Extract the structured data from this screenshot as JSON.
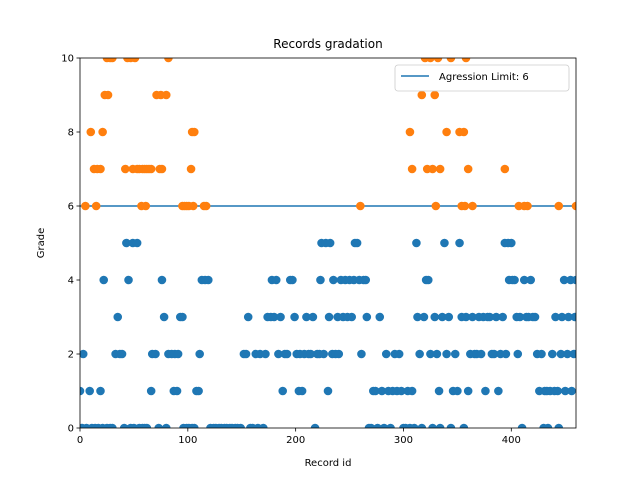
{
  "chart_data": {
    "type": "scatter",
    "title": "Records gradation",
    "xlabel": "Record id",
    "ylabel": "Grade",
    "xlim": [
      0,
      460
    ],
    "ylim": [
      0,
      10
    ],
    "xticks": [
      0,
      100,
      200,
      300,
      400
    ],
    "yticks": [
      0,
      2,
      4,
      6,
      8,
      10
    ],
    "grid": false,
    "legend_position": "top-right",
    "threshold_line": {
      "name": "Agression Limit: 6",
      "y": 6,
      "color": "#1f77b4"
    },
    "series": [
      {
        "role": "below-limit",
        "color": "#1f77b4",
        "points": [
          [
            0,
            1
          ],
          [
            2,
            0
          ],
          [
            3,
            2
          ],
          [
            6,
            0
          ],
          [
            9,
            1
          ],
          [
            11,
            0
          ],
          [
            14,
            0
          ],
          [
            17,
            0
          ],
          [
            19,
            1
          ],
          [
            21,
            0
          ],
          [
            22,
            4
          ],
          [
            25,
            0
          ],
          [
            28,
            0
          ],
          [
            30,
            0
          ],
          [
            33,
            2
          ],
          [
            35,
            3
          ],
          [
            37,
            2
          ],
          [
            39,
            2
          ],
          [
            41,
            0
          ],
          [
            43,
            5
          ],
          [
            45,
            4
          ],
          [
            47,
            0
          ],
          [
            49,
            5
          ],
          [
            50,
            0
          ],
          [
            53,
            5
          ],
          [
            55,
            0
          ],
          [
            58,
            0
          ],
          [
            60,
            0
          ],
          [
            62,
            0
          ],
          [
            66,
            1
          ],
          [
            67,
            2
          ],
          [
            70,
            2
          ],
          [
            73,
            0
          ],
          [
            76,
            4
          ],
          [
            78,
            3
          ],
          [
            80,
            0
          ],
          [
            82,
            2
          ],
          [
            85,
            2
          ],
          [
            87,
            1
          ],
          [
            88,
            2
          ],
          [
            90,
            1
          ],
          [
            91,
            2
          ],
          [
            93,
            3
          ],
          [
            95,
            3
          ],
          [
            96,
            0
          ],
          [
            99,
            0
          ],
          [
            101,
            0
          ],
          [
            104,
            0
          ],
          [
            106,
            0
          ],
          [
            108,
            1
          ],
          [
            110,
            1
          ],
          [
            111,
            2
          ],
          [
            113,
            4
          ],
          [
            116,
            4
          ],
          [
            119,
            4
          ],
          [
            121,
            0
          ],
          [
            124,
            0
          ],
          [
            126,
            0
          ],
          [
            129,
            0
          ],
          [
            131,
            0
          ],
          [
            134,
            0
          ],
          [
            136,
            0
          ],
          [
            139,
            0
          ],
          [
            141,
            0
          ],
          [
            144,
            0
          ],
          [
            146,
            0
          ],
          [
            149,
            0
          ],
          [
            152,
            2
          ],
          [
            154,
            2
          ],
          [
            156,
            3
          ],
          [
            158,
            0
          ],
          [
            160,
            0
          ],
          [
            163,
            2
          ],
          [
            165,
            0
          ],
          [
            167,
            2
          ],
          [
            170,
            0
          ],
          [
            172,
            2
          ],
          [
            174,
            3
          ],
          [
            177,
            3
          ],
          [
            178,
            4
          ],
          [
            180,
            3
          ],
          [
            182,
            4
          ],
          [
            184,
            2
          ],
          [
            186,
            3
          ],
          [
            188,
            1
          ],
          [
            190,
            2
          ],
          [
            192,
            2
          ],
          [
            195,
            4
          ],
          [
            197,
            4
          ],
          [
            199,
            3
          ],
          [
            201,
            2
          ],
          [
            203,
            1
          ],
          [
            204,
            2
          ],
          [
            206,
            1
          ],
          [
            208,
            2
          ],
          [
            210,
            3
          ],
          [
            212,
            2
          ],
          [
            214,
            2
          ],
          [
            216,
            3
          ],
          [
            218,
            0
          ],
          [
            220,
            2
          ],
          [
            222,
            2
          ],
          [
            223,
            4
          ],
          [
            224,
            5
          ],
          [
            226,
            2
          ],
          [
            228,
            5
          ],
          [
            230,
            1
          ],
          [
            231,
            3
          ],
          [
            232,
            5
          ],
          [
            234,
            2
          ],
          [
            235,
            4
          ],
          [
            237,
            2
          ],
          [
            239,
            3
          ],
          [
            240,
            2
          ],
          [
            242,
            4
          ],
          [
            244,
            3
          ],
          [
            246,
            4
          ],
          [
            248,
            3
          ],
          [
            250,
            4
          ],
          [
            252,
            3
          ],
          [
            254,
            4
          ],
          [
            255,
            5
          ],
          [
            257,
            5
          ],
          [
            259,
            4
          ],
          [
            261,
            2
          ],
          [
            263,
            4
          ],
          [
            265,
            4
          ],
          [
            266,
            3
          ],
          [
            268,
            0
          ],
          [
            270,
            0
          ],
          [
            272,
            1
          ],
          [
            274,
            1
          ],
          [
            276,
            0
          ],
          [
            278,
            3
          ],
          [
            280,
            1
          ],
          [
            282,
            0
          ],
          [
            284,
            2
          ],
          [
            286,
            1
          ],
          [
            288,
            0
          ],
          [
            290,
            1
          ],
          [
            292,
            2
          ],
          [
            294,
            1
          ],
          [
            296,
            2
          ],
          [
            298,
            1
          ],
          [
            300,
            0
          ],
          [
            302,
            0
          ],
          [
            304,
            1
          ],
          [
            306,
            0
          ],
          [
            308,
            1
          ],
          [
            310,
            0
          ],
          [
            312,
            5
          ],
          [
            313,
            3
          ],
          [
            315,
            2
          ],
          [
            317,
            0
          ],
          [
            319,
            3
          ],
          [
            321,
            4
          ],
          [
            323,
            4
          ],
          [
            325,
            2
          ],
          [
            327,
            0
          ],
          [
            329,
            3
          ],
          [
            331,
            2
          ],
          [
            333,
            1
          ],
          [
            334,
            0
          ],
          [
            336,
            3
          ],
          [
            338,
            5
          ],
          [
            340,
            2
          ],
          [
            342,
            3
          ],
          [
            344,
            0
          ],
          [
            346,
            1
          ],
          [
            348,
            2
          ],
          [
            350,
            1
          ],
          [
            352,
            5
          ],
          [
            354,
            3
          ],
          [
            356,
            0
          ],
          [
            358,
            3
          ],
          [
            360,
            1
          ],
          [
            362,
            2
          ],
          [
            364,
            3
          ],
          [
            366,
            2
          ],
          [
            368,
            2
          ],
          [
            370,
            3
          ],
          [
            372,
            2
          ],
          [
            374,
            3
          ],
          [
            376,
            1
          ],
          [
            378,
            3
          ],
          [
            380,
            3
          ],
          [
            382,
            2
          ],
          [
            384,
            2
          ],
          [
            386,
            3
          ],
          [
            388,
            1
          ],
          [
            390,
            2
          ],
          [
            392,
            3
          ],
          [
            394,
            5
          ],
          [
            395,
            2
          ],
          [
            397,
            5
          ],
          [
            398,
            4
          ],
          [
            400,
            5
          ],
          [
            401,
            4
          ],
          [
            403,
            4
          ],
          [
            405,
            3
          ],
          [
            406,
            2
          ],
          [
            408,
            3
          ],
          [
            410,
            0
          ],
          [
            412,
            4
          ],
          [
            414,
            3
          ],
          [
            416,
            3
          ],
          [
            418,
            4
          ],
          [
            420,
            3
          ],
          [
            422,
            3
          ],
          [
            424,
            2
          ],
          [
            426,
            1
          ],
          [
            428,
            2
          ],
          [
            430,
            0
          ],
          [
            431,
            1
          ],
          [
            433,
            1
          ],
          [
            434,
            0
          ],
          [
            436,
            1
          ],
          [
            438,
            2
          ],
          [
            440,
            1
          ],
          [
            441,
            3
          ],
          [
            443,
            1
          ],
          [
            444,
            0
          ],
          [
            446,
            2
          ],
          [
            447,
            3
          ],
          [
            449,
            4
          ],
          [
            450,
            1
          ],
          [
            452,
            2
          ],
          [
            453,
            3
          ],
          [
            455,
            4
          ],
          [
            456,
            1
          ],
          [
            458,
            2
          ],
          [
            459,
            3
          ],
          [
            460,
            4
          ]
        ]
      },
      {
        "role": "above-limit",
        "color": "#ff7f0e",
        "points": [
          [
            5,
            6
          ],
          [
            10,
            8
          ],
          [
            13,
            7
          ],
          [
            15,
            6
          ],
          [
            16,
            7
          ],
          [
            19,
            7
          ],
          [
            21,
            8
          ],
          [
            23,
            9
          ],
          [
            25,
            10
          ],
          [
            26,
            9
          ],
          [
            28,
            10
          ],
          [
            30,
            10
          ],
          [
            42,
            7
          ],
          [
            44,
            10
          ],
          [
            47,
            10
          ],
          [
            49,
            7
          ],
          [
            51,
            10
          ],
          [
            53,
            7
          ],
          [
            55,
            7
          ],
          [
            57,
            6
          ],
          [
            58,
            7
          ],
          [
            60,
            7
          ],
          [
            61,
            6
          ],
          [
            62,
            7
          ],
          [
            64,
            7
          ],
          [
            66,
            7
          ],
          [
            71,
            9
          ],
          [
            74,
            7
          ],
          [
            75,
            9
          ],
          [
            76,
            7
          ],
          [
            80,
            9
          ],
          [
            82,
            10
          ],
          [
            95,
            6
          ],
          [
            97,
            6
          ],
          [
            99,
            6
          ],
          [
            101,
            6
          ],
          [
            103,
            7
          ],
          [
            104,
            8
          ],
          [
            105,
            6
          ],
          [
            106,
            8
          ],
          [
            115,
            6
          ],
          [
            117,
            6
          ],
          [
            260,
            6
          ],
          [
            306,
            8
          ],
          [
            308,
            7
          ],
          [
            317,
            9
          ],
          [
            320,
            10
          ],
          [
            322,
            7
          ],
          [
            325,
            10
          ],
          [
            327,
            7
          ],
          [
            329,
            9
          ],
          [
            330,
            6
          ],
          [
            332,
            10
          ],
          [
            334,
            7
          ],
          [
            340,
            8
          ],
          [
            344,
            10
          ],
          [
            352,
            8
          ],
          [
            354,
            6
          ],
          [
            356,
            8
          ],
          [
            357,
            6
          ],
          [
            358,
            10
          ],
          [
            360,
            7
          ],
          [
            364,
            6
          ],
          [
            394,
            7
          ],
          [
            407,
            6
          ],
          [
            412,
            6
          ],
          [
            415,
            6
          ],
          [
            444,
            6
          ],
          [
            460,
            6
          ]
        ]
      }
    ]
  }
}
